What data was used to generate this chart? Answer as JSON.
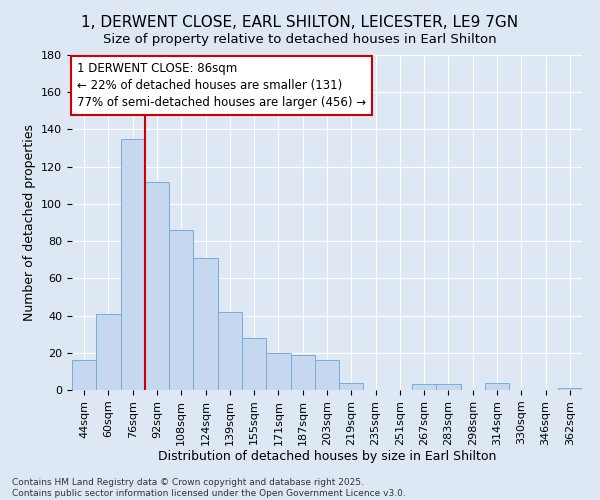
{
  "title": "1, DERWENT CLOSE, EARL SHILTON, LEICESTER, LE9 7GN",
  "subtitle": "Size of property relative to detached houses in Earl Shilton",
  "xlabel": "Distribution of detached houses by size in Earl Shilton",
  "ylabel": "Number of detached properties",
  "categories": [
    "44sqm",
    "60sqm",
    "76sqm",
    "92sqm",
    "108sqm",
    "124sqm",
    "139sqm",
    "155sqm",
    "171sqm",
    "187sqm",
    "203sqm",
    "219sqm",
    "235sqm",
    "251sqm",
    "267sqm",
    "283sqm",
    "298sqm",
    "314sqm",
    "330sqm",
    "346sqm",
    "362sqm"
  ],
  "values": [
    16,
    41,
    135,
    112,
    86,
    71,
    42,
    28,
    20,
    19,
    16,
    4,
    0,
    0,
    3,
    3,
    0,
    4,
    0,
    0,
    1
  ],
  "bar_color": "#c5d8ef",
  "bar_edge_color": "#7aadd4",
  "property_bin_index": 3,
  "annotation_line1": "1 DERWENT CLOSE: 86sqm",
  "annotation_line2": "← 22% of detached houses are smaller (131)",
  "annotation_line3": "77% of semi-detached houses are larger (456) →",
  "box_facecolor": "#ffffff",
  "box_edgecolor": "#cc0000",
  "vline_color": "#cc0000",
  "background_color": "#dde8f4",
  "axes_bg_color": "#dde8f4",
  "grid_color": "#ffffff",
  "footer_line1": "Contains HM Land Registry data © Crown copyright and database right 2025.",
  "footer_line2": "Contains public sector information licensed under the Open Government Licence v3.0.",
  "ylim": [
    0,
    180
  ],
  "yticks": [
    0,
    20,
    40,
    60,
    80,
    100,
    120,
    140,
    160,
    180
  ],
  "title_fontsize": 11,
  "subtitle_fontsize": 9.5,
  "label_fontsize": 9,
  "tick_fontsize": 8,
  "annotation_fontsize": 8.5,
  "footer_fontsize": 6.5
}
